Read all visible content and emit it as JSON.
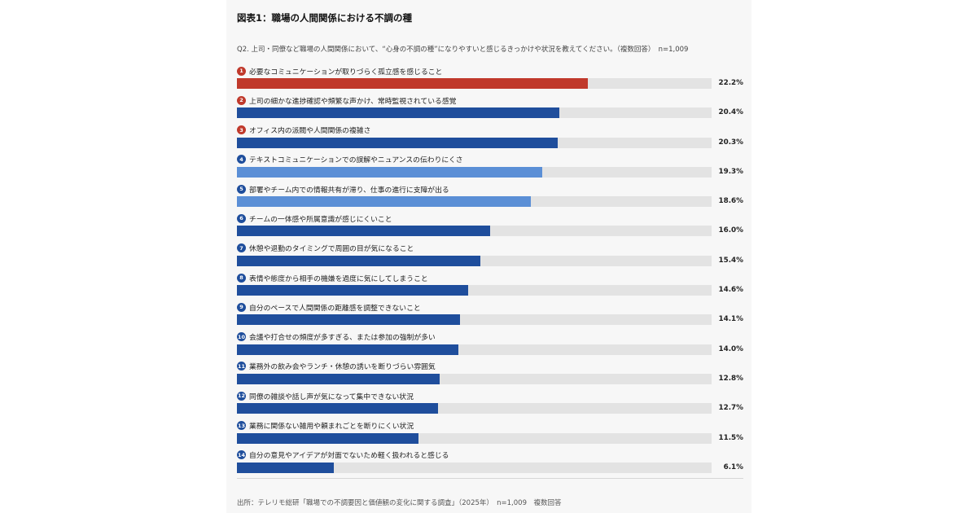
{
  "chart_data": {
    "type": "bar",
    "orientation": "horizontal",
    "title": "図表1：職場の人間関係における不調の種",
    "subtitle": "Q2. 上司・同僚など職場の人間関係において、“心身の不調の種”になりやすいと感じるきっかけや状況を教えてください。（複数回答）　n=1,009",
    "xlim": [
      0,
      30
    ],
    "unit": "%",
    "grid": false,
    "legend": "none",
    "categories": [
      "必要なコミュニケーションが取りづらく孤立感を感じること",
      "上司の細かな進捗確認や頻繁な声かけ、常時監視されている感覚",
      "オフィス内の派閥や人間関係の複雑さ",
      "テキストコミュニケーションでの誤解やニュアンスの伝わりにくさ",
      "部署やチーム内での情報共有が滞り、仕事の進行に支障が出る",
      "チームの一体感や所属意識が感じにくいこと",
      "休憩や退勤のタイミングで周囲の目が気になること",
      "表情や態度から相手の機嫌を過度に気にしてしまうこと",
      "自分のペースで人間関係の距離感を調整できないこと",
      "会議や打合せの頻度が多すぎる、または参加の強制が多い",
      "業務外の飲み会やランチ・休憩の誘いを断りづらい雰囲気",
      "同僚の雑談や話し声が気になって集中できない状況",
      "業務に関係ない雑用や頼まれごとを断りにくい状況",
      "自分の意見やアイデアが対面でないため軽く扱われると感じる"
    ],
    "values": [
      22.2,
      20.4,
      20.3,
      19.3,
      18.6,
      16.0,
      15.4,
      14.6,
      14.1,
      14.0,
      12.8,
      12.7,
      11.5,
      6.1
    ],
    "value_labels": [
      "22.2%",
      "20.4%",
      "20.3%",
      "19.3%",
      "18.6%",
      "16.0%",
      "15.4%",
      "14.6%",
      "14.1%",
      "14.0%",
      "12.8%",
      "12.7%",
      "11.5%",
      "6.1%"
    ],
    "ranks": [
      "1",
      "2",
      "3",
      "4",
      "5",
      "6",
      "7",
      "8",
      "9",
      "10",
      "11",
      "12",
      "13",
      "14"
    ],
    "bar_colors": [
      "#c0392b",
      "#1f4e9c",
      "#1f4e9c",
      "#5b8fd6",
      "#5b8fd6",
      "#1f4e9c",
      "#1f4e9c",
      "#1f4e9c",
      "#1f4e9c",
      "#1f4e9c",
      "#1f4e9c",
      "#1f4e9c",
      "#1f4e9c",
      "#1f4e9c"
    ],
    "rank_colors": [
      "#c0392b",
      "#c0392b",
      "#c0392b",
      "#1f4e9c",
      "#1f4e9c",
      "#1f4e9c",
      "#1f4e9c",
      "#1f4e9c",
      "#1f4e9c",
      "#1f4e9c",
      "#1f4e9c",
      "#1f4e9c",
      "#1f4e9c",
      "#1f4e9c"
    ],
    "track_color": "#e3e3e3"
  },
  "source_note": "出所：テレリモ総研「職場での不調要因と価値観の変化に関する調査」（2025年）　n=1,009　複数回答"
}
